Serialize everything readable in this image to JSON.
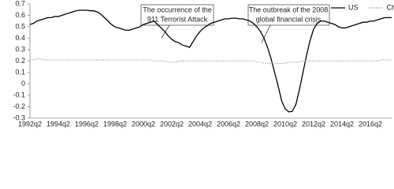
{
  "chart_data": {
    "type": "line",
    "categories": [
      "1992q2",
      null,
      null,
      null,
      null,
      null,
      null,
      null,
      "1994q2",
      null,
      null,
      null,
      null,
      null,
      null,
      null,
      "1996q2",
      null,
      null,
      null,
      null,
      null,
      null,
      null,
      "1998q2",
      null,
      null,
      null,
      null,
      null,
      null,
      null,
      "2000q2",
      null,
      null,
      null,
      null,
      null,
      null,
      null,
      "2002q2",
      null,
      null,
      null,
      null,
      null,
      null,
      null,
      "2004q2",
      null,
      null,
      null,
      null,
      null,
      null,
      null,
      "2006q2",
      null,
      null,
      null,
      null,
      null,
      null,
      null,
      "2008q2",
      null,
      null,
      null,
      null,
      null,
      null,
      null,
      "2010q2",
      null,
      null,
      null,
      null,
      null,
      null,
      null,
      "2012q2",
      null,
      null,
      null,
      null,
      null,
      null,
      null,
      "2014q2",
      null,
      null,
      null,
      null,
      null,
      null,
      null,
      "2016q2",
      null,
      null,
      null,
      null,
      null,
      null
    ],
    "series": [
      {
        "name": "US",
        "color": "#000000",
        "linestyle": "solid",
        "values": [
          0.52,
          0.53,
          0.55,
          0.56,
          0.57,
          0.58,
          0.58,
          0.59,
          0.59,
          0.6,
          0.61,
          0.62,
          0.63,
          0.64,
          0.645,
          0.645,
          0.645,
          0.64,
          0.64,
          0.63,
          0.61,
          0.58,
          0.55,
          0.52,
          0.5,
          0.49,
          0.48,
          0.47,
          0.47,
          0.48,
          0.49,
          0.5,
          0.52,
          0.53,
          0.54,
          0.55,
          0.52,
          0.49,
          0.46,
          0.42,
          0.39,
          0.37,
          0.36,
          0.34,
          0.33,
          0.32,
          0.37,
          0.42,
          0.46,
          0.49,
          0.51,
          0.53,
          0.54,
          0.55,
          0.56,
          0.57,
          0.57,
          0.575,
          0.575,
          0.57,
          0.57,
          0.56,
          0.55,
          0.53,
          0.5,
          0.46,
          0.4,
          0.32,
          0.22,
          0.1,
          -0.02,
          -0.15,
          -0.22,
          -0.245,
          -0.24,
          -0.18,
          -0.05,
          0.1,
          0.25,
          0.38,
          0.48,
          0.53,
          0.55,
          0.55,
          0.54,
          0.53,
          0.52,
          0.5,
          0.49,
          0.49,
          0.5,
          0.51,
          0.52,
          0.53,
          0.54,
          0.54,
          0.55,
          0.55,
          0.56,
          0.57,
          0.58,
          0.58,
          0.58
        ]
      },
      {
        "name": "China",
        "color": "#999999",
        "linestyle": "dotted",
        "values": [
          0.21,
          0.21,
          0.22,
          0.22,
          0.21,
          0.21,
          0.21,
          0.21,
          0.21,
          0.21,
          0.21,
          0.21,
          0.21,
          0.21,
          0.21,
          0.21,
          0.21,
          0.21,
          0.21,
          0.21,
          0.21,
          0.21,
          0.21,
          0.21,
          0.21,
          0.21,
          0.21,
          0.21,
          0.21,
          0.21,
          0.21,
          0.21,
          0.21,
          0.21,
          0.21,
          0.2,
          0.2,
          0.2,
          0.2,
          0.19,
          0.19,
          0.19,
          0.2,
          0.2,
          0.2,
          0.2,
          0.2,
          0.2,
          0.2,
          0.2,
          0.2,
          0.2,
          0.2,
          0.2,
          0.2,
          0.2,
          0.2,
          0.2,
          0.2,
          0.2,
          0.2,
          0.2,
          0.2,
          0.2,
          0.19,
          0.19,
          0.18,
          0.18,
          0.18,
          0.18,
          0.18,
          0.18,
          0.18,
          0.19,
          0.19,
          0.19,
          0.19,
          0.2,
          0.2,
          0.2,
          0.2,
          0.2,
          0.2,
          0.2,
          0.2,
          0.2,
          0.2,
          0.2,
          0.2,
          0.2,
          0.2,
          0.2,
          0.2,
          0.2,
          0.2,
          0.2,
          0.2,
          0.2,
          0.2,
          0.21,
          0.21,
          0.21,
          0.21
        ]
      }
    ],
    "ylim": [
      -0.3,
      0.7
    ],
    "yticks": [
      -0.3,
      -0.2,
      -0.1,
      0,
      0.1,
      0.2,
      0.3,
      0.4,
      0.5,
      0.6,
      0.7
    ],
    "grid": false,
    "legend": "upper right",
    "annotations": [
      {
        "lines": [
          "The occurrence of the",
          "911 Terrorist Attack"
        ]
      },
      {
        "lines": [
          "The outbreak of the 2008",
          "global financial crisis"
        ]
      }
    ]
  }
}
